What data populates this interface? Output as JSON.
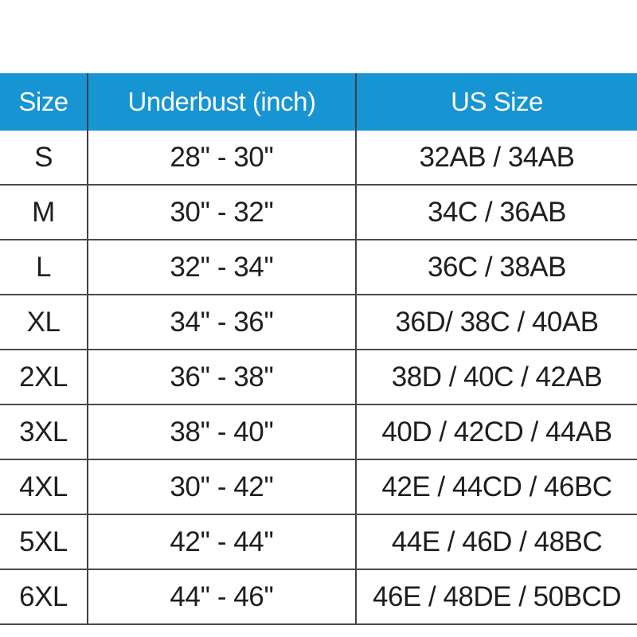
{
  "page": {
    "background": "#ffffff"
  },
  "table": {
    "header_bg": "#1794d2",
    "header_text_color": "#fbfdfe",
    "grid_color": "#4a4a4a",
    "body_text_color": "#1e1e1e",
    "columns": [
      "Size",
      "Underbust (inch)",
      "US Size"
    ],
    "rows": [
      {
        "size": "S",
        "underbust": "28'' - 30''",
        "us_size": "32AB / 34AB"
      },
      {
        "size": "M",
        "underbust": "30'' - 32''",
        "us_size": "34C / 36AB"
      },
      {
        "size": "L",
        "underbust": "32'' - 34''",
        "us_size": "36C / 38AB"
      },
      {
        "size": "XL",
        "underbust": "34'' - 36''",
        "us_size": "36D/ 38C / 40AB"
      },
      {
        "size": "2XL",
        "underbust": "36'' - 38''",
        "us_size": "38D / 40C / 42AB"
      },
      {
        "size": "3XL",
        "underbust": "38'' - 40''",
        "us_size": "40D / 42CD / 44AB"
      },
      {
        "size": "4XL",
        "underbust": "30'' - 42''",
        "us_size": "42E / 44CD / 46BC"
      },
      {
        "size": "5XL",
        "underbust": "42'' - 44''",
        "us_size": "44E / 46D / 48BC"
      },
      {
        "size": "6XL",
        "underbust": "44'' - 46''",
        "us_size": "46E / 48DE / 50BCD"
      }
    ]
  },
  "chart_data": {
    "type": "table",
    "columns": [
      "Size",
      "Underbust (inch)",
      "US Size"
    ],
    "rows": [
      [
        "S",
        "28'' - 30''",
        "32AB / 34AB"
      ],
      [
        "M",
        "30'' - 32''",
        "34C / 36AB"
      ],
      [
        "L",
        "32'' - 34''",
        "36C / 38AB"
      ],
      [
        "XL",
        "34'' - 36''",
        "36D/ 38C / 40AB"
      ],
      [
        "2XL",
        "36'' - 38''",
        "38D / 40C / 42AB"
      ],
      [
        "3XL",
        "38'' - 40''",
        "40D / 42CD / 44AB"
      ],
      [
        "4XL",
        "30'' - 42''",
        "42E / 44CD / 46BC"
      ],
      [
        "5XL",
        "42'' - 44''",
        "44E / 46D / 48BC"
      ],
      [
        "6XL",
        "44'' - 46''",
        "46E / 48DE / 50BCD"
      ]
    ]
  }
}
